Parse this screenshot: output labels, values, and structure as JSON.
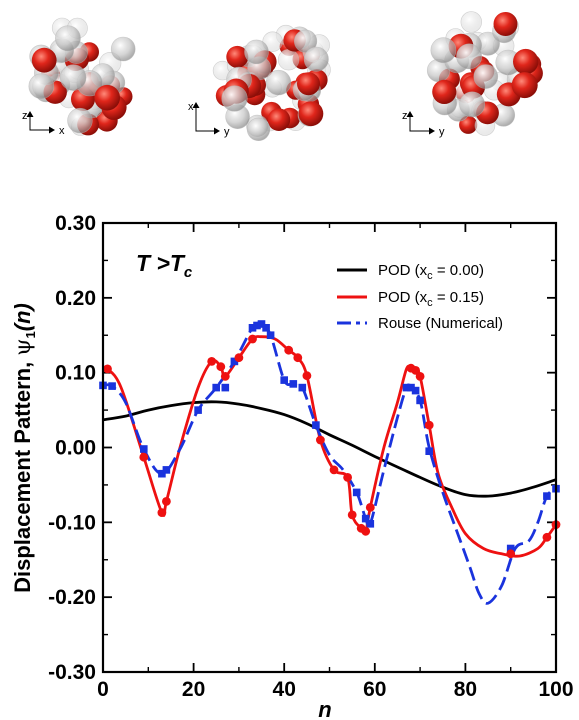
{
  "colors": {
    "pod_0": "#000000",
    "pod_015": "#ee1111",
    "rouse": "#1a33dd",
    "sphere_red": "#d41f16",
    "sphere_grey": "#bdbdbd"
  },
  "snapshots": [
    {
      "vertical_axis": "z",
      "horizontal_axis": "x"
    },
    {
      "vertical_axis": "x",
      "horizontal_axis": "y"
    },
    {
      "vertical_axis": "z",
      "horizontal_axis": "y"
    }
  ],
  "chart_data": {
    "type": "line",
    "annotation": {
      "main": "T >T",
      "sub": "c"
    },
    "xlabel": "n",
    "ylabel": {
      "main": "Displacement Pattern, ",
      "psi": "ψ",
      "psi_sub": "1",
      "arg": "(n)"
    },
    "xlim": [
      0,
      100
    ],
    "ylim": [
      -0.3,
      0.3
    ],
    "xticks": [
      0,
      20,
      40,
      60,
      80,
      100
    ],
    "xtick_labels": [
      "0",
      "20",
      "40",
      "60",
      "80",
      "100"
    ],
    "yticks": [
      0.3,
      0.2,
      0.1,
      0.0,
      -0.1,
      -0.2,
      -0.3
    ],
    "ytick_labels": [
      "0.30",
      "0.20",
      "0.10",
      "0.00",
      "-0.10",
      "-0.20",
      "-0.30"
    ],
    "legend_position": "top-right",
    "legend": [
      {
        "label": "POD (x",
        "sub": "c",
        "label_end": " = 0.00)"
      },
      {
        "label": "POD (x",
        "sub": "c",
        "label_end": " = 0.15)"
      },
      {
        "label": "Rouse (Numerical)",
        "sub": "",
        "label_end": ""
      }
    ],
    "series": [
      {
        "style": "solid",
        "x": [
          0,
          5,
          10,
          15,
          20,
          25,
          30,
          35,
          40,
          45,
          50,
          55,
          60,
          65,
          70,
          75,
          80,
          85,
          90,
          95,
          100
        ],
        "y": [
          0.037,
          0.042,
          0.05,
          0.056,
          0.06,
          0.061,
          0.058,
          0.052,
          0.044,
          0.032,
          0.017,
          0.003,
          -0.012,
          -0.026,
          -0.04,
          -0.053,
          -0.063,
          -0.065,
          -0.061,
          -0.053,
          -0.043
        ]
      },
      {
        "style": "solid",
        "x": [
          0,
          1,
          4,
          9,
          13,
          14,
          17,
          21,
          24,
          26,
          27,
          30,
          33,
          35,
          38,
          41,
          43,
          45,
          48,
          51,
          54,
          55,
          57,
          58,
          59,
          62,
          65,
          67,
          68,
          69,
          70,
          72,
          74,
          77,
          80,
          84,
          88,
          92,
          96,
          98,
          100
        ],
        "y": [
          0.105,
          0.105,
          0.08,
          -0.013,
          -0.087,
          -0.072,
          0.0,
          0.08,
          0.115,
          0.108,
          0.095,
          0.12,
          0.145,
          0.148,
          0.145,
          0.13,
          0.12,
          0.096,
          0.01,
          -0.03,
          -0.04,
          -0.09,
          -0.108,
          -0.112,
          -0.08,
          0.0,
          0.06,
          0.105,
          0.106,
          0.103,
          0.095,
          0.03,
          -0.035,
          -0.08,
          -0.115,
          -0.135,
          -0.142,
          -0.145,
          -0.135,
          -0.12,
          -0.103
        ]
      },
      {
        "style": "dashed",
        "x": [
          0,
          2,
          5,
          9,
          13,
          17,
          21,
          25,
          29,
          33,
          35,
          37,
          40,
          42,
          44,
          47,
          50,
          53,
          56,
          58,
          59,
          62,
          65,
          67,
          68,
          70,
          72,
          75,
          78,
          81,
          83,
          85,
          88,
          91,
          94,
          96,
          98,
          100
        ],
        "y": [
          0.083,
          0.082,
          0.06,
          -0.002,
          -0.035,
          -0.002,
          0.05,
          0.08,
          0.115,
          0.16,
          0.165,
          0.15,
          0.09,
          0.085,
          0.08,
          0.03,
          -0.01,
          -0.03,
          -0.06,
          -0.095,
          -0.102,
          -0.03,
          0.04,
          0.08,
          0.08,
          0.063,
          0.0,
          -0.06,
          -0.11,
          -0.16,
          -0.195,
          -0.208,
          -0.185,
          -0.135,
          -0.125,
          -0.1,
          -0.065,
          -0.055
        ]
      }
    ],
    "markers": {
      "circles": {
        "x": [
          1,
          9,
          13,
          14,
          24,
          26,
          27,
          30,
          33,
          41,
          43,
          45,
          48,
          51,
          54,
          55,
          57,
          58,
          59,
          68,
          69,
          70,
          72,
          90,
          98,
          100
        ],
        "y": [
          0.105,
          -0.013,
          -0.087,
          -0.072,
          0.115,
          0.108,
          0.095,
          0.12,
          0.145,
          0.13,
          0.12,
          0.096,
          0.01,
          -0.03,
          -0.04,
          -0.09,
          -0.108,
          -0.112,
          -0.08,
          0.106,
          0.103,
          0.095,
          0.03,
          -0.142,
          -0.12,
          -0.103
        ]
      },
      "squares": {
        "x": [
          0,
          2,
          9,
          13,
          14,
          21,
          25,
          27,
          29,
          33,
          34,
          35,
          36,
          37,
          40,
          42,
          44,
          47,
          56,
          58,
          59,
          67,
          68,
          69,
          70,
          72,
          90,
          98,
          100
        ],
        "y": [
          0.083,
          0.082,
          -0.002,
          -0.035,
          -0.03,
          0.05,
          0.08,
          0.08,
          0.115,
          0.16,
          0.163,
          0.165,
          0.16,
          0.15,
          0.09,
          0.085,
          0.08,
          0.03,
          -0.06,
          -0.095,
          -0.102,
          0.08,
          0.08,
          0.076,
          0.063,
          -0.005,
          -0.135,
          -0.065,
          -0.055
        ]
      }
    }
  }
}
